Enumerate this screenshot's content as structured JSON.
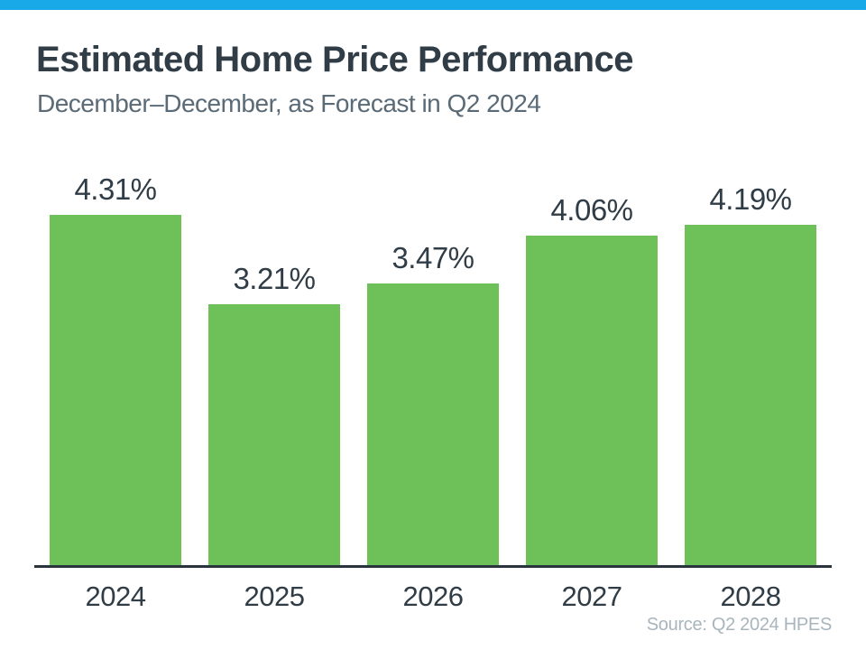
{
  "accent": {
    "top_bar_color": "#1AA9E8",
    "bar_color": "#6EC158",
    "text_dark": "#303C46",
    "subtitle_color": "#5A6A76",
    "axis_color": "#2A343C",
    "source_color": "#A8B5BD"
  },
  "header": {
    "title": "Estimated Home Price Performance",
    "subtitle": "December–December, as Forecast in Q2 2024"
  },
  "chart_data": {
    "type": "bar",
    "categories": [
      "2024",
      "2025",
      "2026",
      "2027",
      "2028"
    ],
    "values": [
      4.31,
      3.21,
      3.47,
      4.06,
      4.19
    ],
    "value_labels": [
      "4.31%",
      "3.21%",
      "3.47%",
      "4.06%",
      "4.19%"
    ],
    "title": "Estimated Home Price Performance",
    "subtitle": "December–December, as Forecast in Q2 2024",
    "xlabel": "",
    "ylabel": "",
    "ylim": [
      0,
      4.31
    ],
    "grid": false,
    "legend": false,
    "bar_color": "#6EC158",
    "data_labels_position": "above-bars",
    "baseline_axis": "x-only"
  },
  "footer": {
    "source": "Source: Q2 2024 HPES"
  }
}
